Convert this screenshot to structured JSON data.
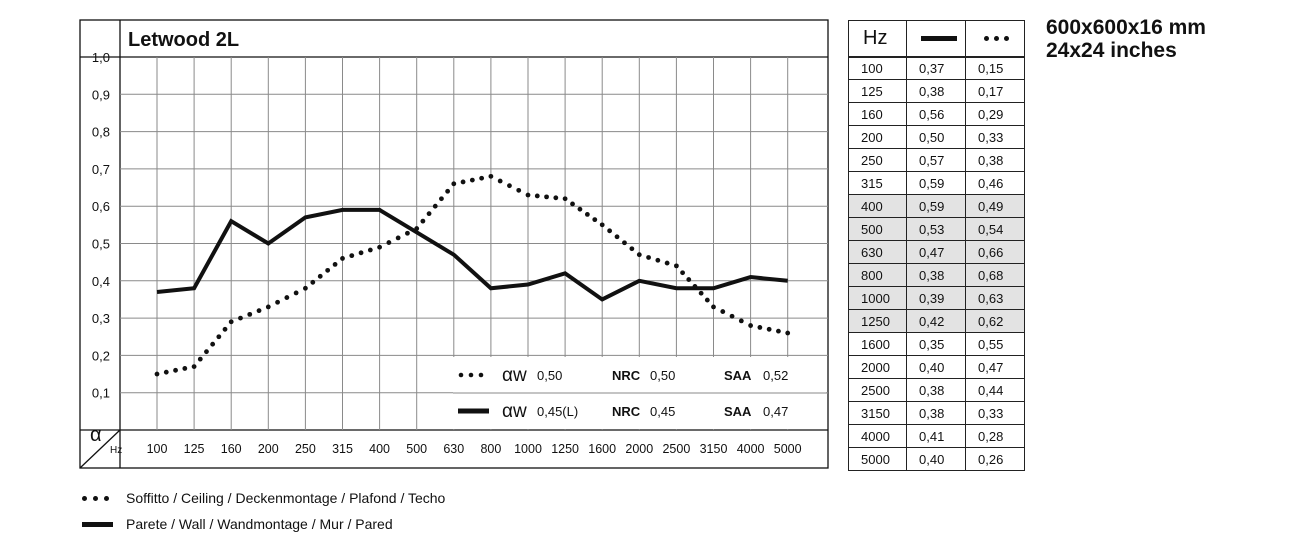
{
  "chart_data": {
    "type": "line",
    "title": "Letwood 2L",
    "ylabel": "α",
    "xlabel": "Hz",
    "ylim": [
      0,
      1
    ],
    "yticks": [
      "1,0",
      "0,9",
      "0,8",
      "0,7",
      "0,6",
      "0,5",
      "0,4",
      "0,3",
      "0,2",
      "0,1"
    ],
    "categories": [
      "100",
      "125",
      "160",
      "200",
      "250",
      "315",
      "400",
      "500",
      "630",
      "800",
      "1000",
      "1250",
      "1600",
      "2000",
      "2500",
      "3150",
      "4000",
      "5000"
    ],
    "series": [
      {
        "style": "solid",
        "values": [
          0.37,
          0.38,
          0.56,
          0.5,
          0.57,
          0.59,
          0.59,
          0.53,
          0.47,
          0.38,
          0.39,
          0.42,
          0.35,
          0.4,
          0.38,
          0.38,
          0.41,
          0.4
        ]
      },
      {
        "style": "dotted",
        "values": [
          0.15,
          0.17,
          0.29,
          0.33,
          0.38,
          0.46,
          0.49,
          0.54,
          0.66,
          0.68,
          0.63,
          0.62,
          0.55,
          0.47,
          0.44,
          0.33,
          0.28,
          0.26
        ]
      }
    ],
    "grid": true
  },
  "ratings": [
    {
      "style": "dotted",
      "aw_label": "αw",
      "aw_value": "0,50",
      "nrc_label": "NRC",
      "nrc_value": "0,50",
      "saa_label": "SAA",
      "saa_value": "0,52"
    },
    {
      "style": "solid",
      "aw_label": "αw",
      "aw_value": "0,45(L)",
      "nrc_label": "NRC",
      "nrc_value": "0,45",
      "saa_label": "SAA",
      "saa_value": "0,47"
    }
  ],
  "table": {
    "header_hz": "Hz",
    "shaded_rows": [
      "400",
      "500",
      "630",
      "800",
      "1000",
      "1250"
    ],
    "rows": [
      [
        "100",
        "0,37",
        "0,15"
      ],
      [
        "125",
        "0,38",
        "0,17"
      ],
      [
        "160",
        "0,56",
        "0,29"
      ],
      [
        "200",
        "0,50",
        "0,33"
      ],
      [
        "250",
        "0,57",
        "0,38"
      ],
      [
        "315",
        "0,59",
        "0,46"
      ],
      [
        "400",
        "0,59",
        "0,49"
      ],
      [
        "500",
        "0,53",
        "0,54"
      ],
      [
        "630",
        "0,47",
        "0,66"
      ],
      [
        "800",
        "0,38",
        "0,68"
      ],
      [
        "1000",
        "0,39",
        "0,63"
      ],
      [
        "1250",
        "0,42",
        "0,62"
      ],
      [
        "1600",
        "0,35",
        "0,55"
      ],
      [
        "2000",
        "0,40",
        "0,47"
      ],
      [
        "2500",
        "0,38",
        "0,44"
      ],
      [
        "3150",
        "0,38",
        "0,33"
      ],
      [
        "4000",
        "0,41",
        "0,28"
      ],
      [
        "5000",
        "0,40",
        "0,26"
      ]
    ]
  },
  "dimensions": {
    "metric": "600x600x16 mm",
    "imperial": "24x24 inches"
  },
  "legend": {
    "dotted": "Soffitto / Ceiling / Deckenmontage / Plafond / Techo",
    "solid": "Parete / Wall / Wandmontage / Mur / Pared"
  },
  "colors": {
    "ink": "#111111",
    "grid": "#8a8a8a",
    "shade": "#e3e3e3"
  }
}
